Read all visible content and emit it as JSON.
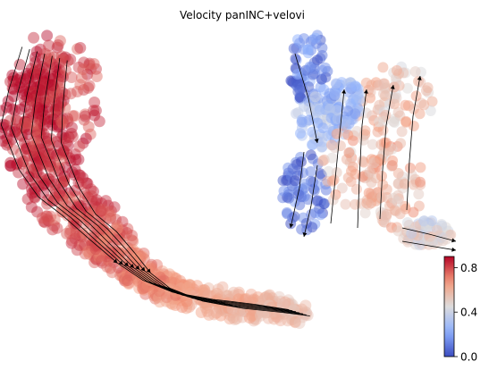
{
  "chart_data": {
    "type": "scatter",
    "title": "Velocity panINC+velovi",
    "subtype": "embedding scatter with RNA-velocity streamlines",
    "axes_visible": false,
    "grid": false,
    "colormap": "coolwarm",
    "colorbar": {
      "placement": "bottom-right",
      "ticks": [
        0.0,
        0.4,
        0.8
      ],
      "tick_labels": [
        "0.0",
        "0.4",
        "0.8"
      ],
      "range": [
        0.0,
        0.9
      ]
    },
    "clusters": [
      {
        "name": "left trajectory",
        "value_range": [
          0.55,
          0.9
        ],
        "dominant_color": "#c9473b"
      },
      {
        "name": "right cluster",
        "value_range": [
          0.0,
          0.7
        ],
        "dominant_color": "#e9a98c"
      }
    ]
  },
  "colors": {
    "cool": "#3b4cc0",
    "neutral": "#dddcdc",
    "warm": "#b40426",
    "arrow": "#000000"
  }
}
